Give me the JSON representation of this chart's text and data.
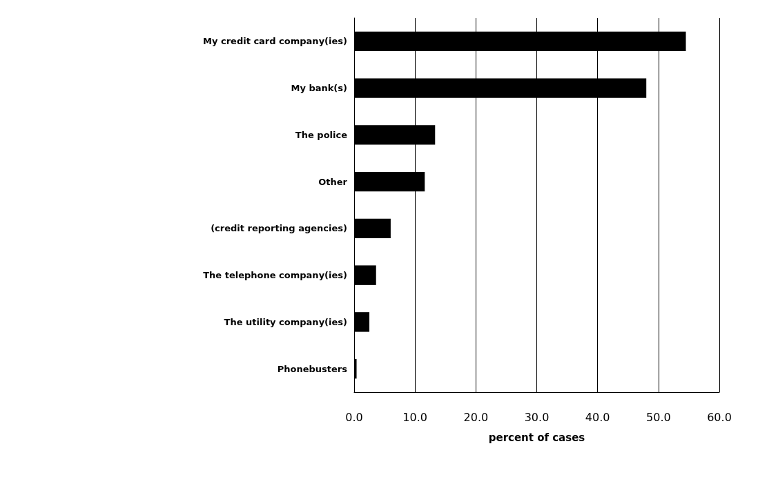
{
  "chart_data": {
    "type": "bar",
    "orientation": "horizontal",
    "xlabel": "percent of cases",
    "categories": [
      "My credit card company(ies)",
      "My bank(s)",
      "The police",
      "Other",
      "(credit reporting agencies)",
      "The telephone company(ies)",
      "The utility company(ies)",
      "Phonebusters"
    ],
    "values": [
      54.5,
      48.0,
      13.3,
      11.6,
      6.0,
      3.6,
      2.5,
      0.4
    ],
    "color": "#000000",
    "xlim": [
      0,
      60
    ],
    "xticks": [
      {
        "value": 0,
        "label": "0.0"
      },
      {
        "value": 10,
        "label": "10.0"
      },
      {
        "value": 20,
        "label": "20.0"
      },
      {
        "value": 30,
        "label": "30.0"
      },
      {
        "value": 40,
        "label": "40.0"
      },
      {
        "value": 50,
        "label": "50.0"
      },
      {
        "value": 60,
        "label": "60.0"
      }
    ],
    "grid": "x"
  }
}
